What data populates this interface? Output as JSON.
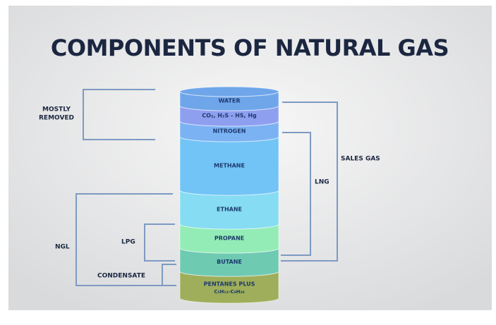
{
  "title": "COMPONENTS OF NATURAL GAS",
  "layers": [
    {
      "label": "WATER"
    },
    {
      "label": "CO₂, H₂S - HS, Hg"
    },
    {
      "label": "NITROGEN"
    },
    {
      "label": "METHANE"
    },
    {
      "label": "ETHANE"
    },
    {
      "label": "PROPANE"
    },
    {
      "label": "BUTANE"
    },
    {
      "label": "PENTANES PLUS",
      "formula": "C₅H₁₂-C₉H₂₀"
    }
  ],
  "groups": {
    "mostly_removed": {
      "lines": [
        "MOSTLY",
        "REMOVED"
      ]
    },
    "ngl": {
      "label": "NGL"
    },
    "lpg": {
      "label": "LPG"
    },
    "condensate": {
      "label": "CONDENSATE"
    },
    "sales_gas": {
      "label": "SALES GAS"
    },
    "lng": {
      "label": "LNG"
    }
  }
}
